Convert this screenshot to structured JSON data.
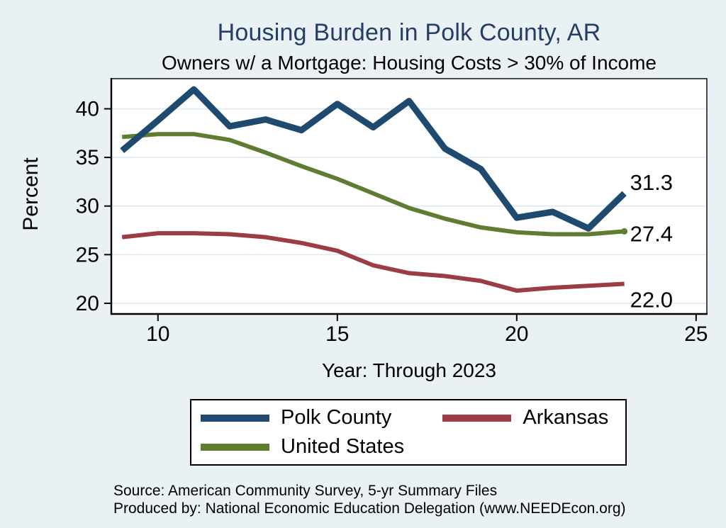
{
  "chart_data": {
    "type": "line",
    "title": "Housing Burden in Polk County, AR",
    "subtitle": "Owners w/ a Mortgage: Housing Costs > 30% of Income",
    "xlabel": "Year: Through 2023",
    "ylabel": "Percent",
    "x": [
      9,
      10,
      11,
      12,
      13,
      14,
      15,
      16,
      17,
      18,
      19,
      20,
      21,
      22,
      23
    ],
    "xticks": [
      10,
      15,
      20,
      25
    ],
    "yticks": [
      20,
      25,
      30,
      35,
      40
    ],
    "xlim": [
      8.7,
      25.3
    ],
    "ylim": [
      18.9,
      43.1
    ],
    "grid": true,
    "grid_color": "#dfeaf1",
    "plot_background": "#ffffff",
    "page_background": "#eaf1f4",
    "legend_position": "bottom",
    "series": [
      {
        "name": "Polk County",
        "color": "#1e4a70",
        "line_width": 9,
        "values": [
          35.7,
          38.8,
          42.0,
          38.2,
          38.9,
          37.8,
          40.5,
          38.1,
          40.8,
          35.9,
          33.8,
          28.8,
          29.4,
          27.7,
          31.3
        ],
        "end_label": "31.3",
        "end_label_dy": -5,
        "end_marker": false
      },
      {
        "name": "Arkansas",
        "color": "#9c3c45",
        "line_width": 6,
        "values": [
          26.8,
          27.2,
          27.2,
          27.1,
          26.8,
          26.2,
          25.4,
          23.9,
          23.1,
          22.8,
          22.3,
          21.3,
          21.6,
          21.8,
          22.0
        ],
        "end_label": "22.0",
        "end_label_dy": 33,
        "end_marker": false
      },
      {
        "name": "United States",
        "color": "#5e7d31",
        "line_width": 6,
        "values": [
          37.1,
          37.4,
          37.4,
          36.8,
          35.5,
          34.1,
          32.8,
          31.3,
          29.8,
          28.7,
          27.8,
          27.3,
          27.1,
          27.1,
          27.4
        ],
        "end_label": "27.4",
        "end_label_dy": 14,
        "end_marker": true
      }
    ]
  },
  "footer": {
    "source": "Source: American Community Survey, 5-yr Summary Files",
    "produced_by": "Produced by: National Economic Education Delegation (www.NEEDEcon.org)"
  }
}
